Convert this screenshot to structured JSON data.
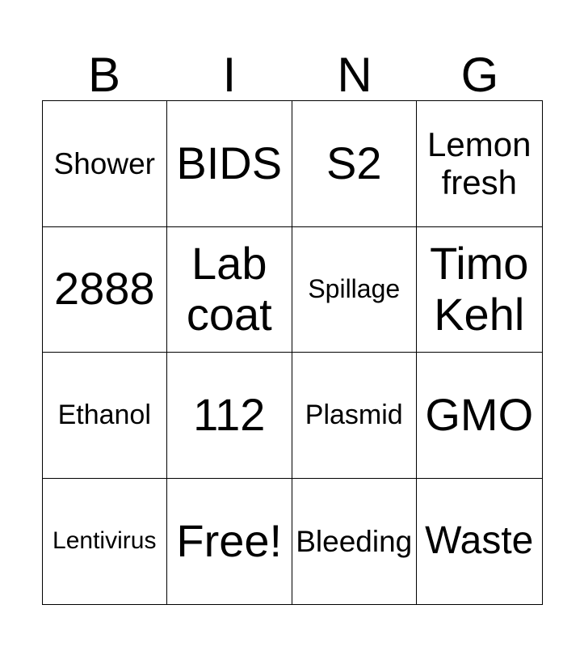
{
  "page": {
    "background": "#ffffff"
  },
  "title": {
    "letters": [
      "B",
      "I",
      "N",
      "G"
    ]
  },
  "grid": {
    "line_color": "#000000",
    "text_color": "#000000",
    "columns": 4,
    "rows": 4,
    "cells": [
      {
        "label": "Shower",
        "size": "ml"
      },
      {
        "label": "BIDS",
        "size": "xxl"
      },
      {
        "label": "S2",
        "size": "xxl"
      },
      {
        "label": "Lemon fresh",
        "size": "lg"
      },
      {
        "label": "2888",
        "size": "xxl"
      },
      {
        "label": "Lab coat",
        "size": "xxl"
      },
      {
        "label": "Spillage",
        "size": "s"
      },
      {
        "label": "Timo Kehl",
        "size": "xxl"
      },
      {
        "label": "Ethanol",
        "size": "m"
      },
      {
        "label": "112",
        "size": "xxl"
      },
      {
        "label": "Plasmid",
        "size": "m"
      },
      {
        "label": "GMO",
        "size": "xxl"
      },
      {
        "label": "Lentivirus",
        "size": "xs"
      },
      {
        "label": "Free!",
        "size": "xxl"
      },
      {
        "label": "Bleeding",
        "size": "ml"
      },
      {
        "label": "Waste",
        "size": "xl"
      }
    ]
  }
}
